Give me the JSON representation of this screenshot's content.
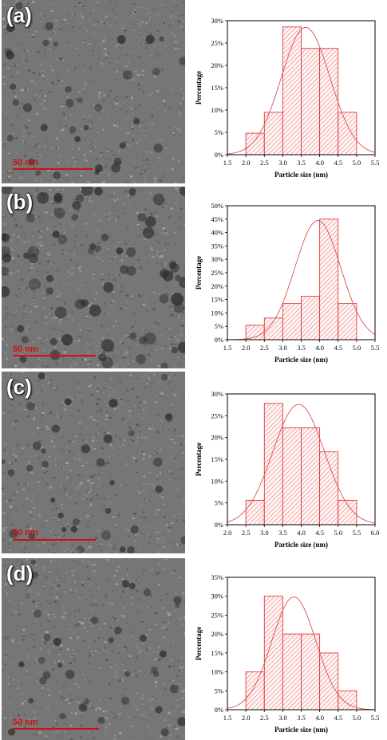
{
  "panels": [
    {
      "label": "(a)",
      "scale_bar": "50 nm",
      "chart_data": {
        "type": "bar",
        "xlabel": "Particle size (nm)",
        "ylabel": "Percentage",
        "xlim": [
          1.5,
          5.5
        ],
        "ylim": [
          0,
          30
        ],
        "x_ticks": [
          "1.5",
          "2.0",
          "2.5",
          "3.0",
          "3.5",
          "4.0",
          "4.5",
          "5.0",
          "5.5"
        ],
        "y_ticks": [
          "0%",
          "5%",
          "10%",
          "15%",
          "20%",
          "25%",
          "30%"
        ],
        "bins": [
          [
            2.0,
            2.5
          ],
          [
            2.5,
            3.0
          ],
          [
            3.0,
            3.5
          ],
          [
            3.5,
            4.0
          ],
          [
            4.0,
            4.5
          ],
          [
            4.5,
            5.0
          ]
        ],
        "values": [
          4.8,
          9.5,
          28.6,
          23.8,
          23.8,
          9.5
        ],
        "fit": {
          "mean": 3.62,
          "sd": 0.66,
          "peak": 28.5
        }
      }
    },
    {
      "label": "(b)",
      "scale_bar": "50 nm",
      "chart_data": {
        "type": "bar",
        "xlabel": "Particle size (nm)",
        "ylabel": "Percentage",
        "xlim": [
          1.5,
          5.5
        ],
        "ylim": [
          0,
          50
        ],
        "x_ticks": [
          "1.5",
          "2.0",
          "2.5",
          "3.0",
          "3.5",
          "4.0",
          "4.5",
          "5.0",
          "5.5"
        ],
        "y_ticks": [
          "0%",
          "5%",
          "10%",
          "15%",
          "20%",
          "25%",
          "30%",
          "35%",
          "40%",
          "45%",
          "50%"
        ],
        "bins": [
          [
            2.0,
            2.5
          ],
          [
            2.5,
            3.0
          ],
          [
            3.0,
            3.5
          ],
          [
            3.5,
            4.0
          ],
          [
            4.0,
            4.5
          ],
          [
            4.5,
            5.0
          ]
        ],
        "values": [
          5.4,
          8.1,
          13.5,
          16.2,
          45.0,
          13.5
        ],
        "fit": {
          "mean": 3.95,
          "sd": 0.62,
          "peak": 44.5
        }
      }
    },
    {
      "label": "(c)",
      "scale_bar": "50 nm",
      "chart_data": {
        "type": "bar",
        "xlabel": "Particle size (nm)",
        "ylabel": "Percentage",
        "xlim": [
          2.0,
          6.0
        ],
        "ylim": [
          0,
          30
        ],
        "x_ticks": [
          "2.0",
          "2.5",
          "3.0",
          "3.5",
          "4.0",
          "4.5",
          "5.0",
          "5.5",
          "6.0"
        ],
        "y_ticks": [
          "0%",
          "5%",
          "10%",
          "15%",
          "20%",
          "25%",
          "30%"
        ],
        "bins": [
          [
            2.5,
            3.0
          ],
          [
            3.0,
            3.5
          ],
          [
            3.5,
            4.0
          ],
          [
            4.0,
            4.5
          ],
          [
            4.5,
            5.0
          ],
          [
            5.0,
            5.5
          ]
        ],
        "values": [
          5.6,
          27.8,
          22.2,
          22.2,
          16.7,
          5.6
        ],
        "fit": {
          "mean": 3.93,
          "sd": 0.7,
          "peak": 27.6
        }
      }
    },
    {
      "label": "(d)",
      "scale_bar": "50 nm",
      "chart_data": {
        "type": "bar",
        "xlabel": "Particle size (nm)",
        "ylabel": "Percentage",
        "xlim": [
          1.5,
          5.5
        ],
        "ylim": [
          0,
          35
        ],
        "x_ticks": [
          "1.5",
          "2.0",
          "2.5",
          "3.0",
          "3.5",
          "4.0",
          "4.5",
          "5.0",
          "5.5"
        ],
        "y_ticks": [
          "0%",
          "5%",
          "10%",
          "15%",
          "20%",
          "25%",
          "30%",
          "35%"
        ],
        "bins": [
          [
            2.0,
            2.5
          ],
          [
            2.5,
            3.0
          ],
          [
            3.0,
            3.5
          ],
          [
            3.5,
            4.0
          ],
          [
            4.0,
            4.5
          ],
          [
            4.5,
            5.0
          ]
        ],
        "values": [
          10.0,
          30.0,
          20.0,
          20.0,
          15.0,
          5.0
        ],
        "fit": {
          "mean": 3.3,
          "sd": 0.6,
          "peak": 29.8
        }
      }
    }
  ]
}
